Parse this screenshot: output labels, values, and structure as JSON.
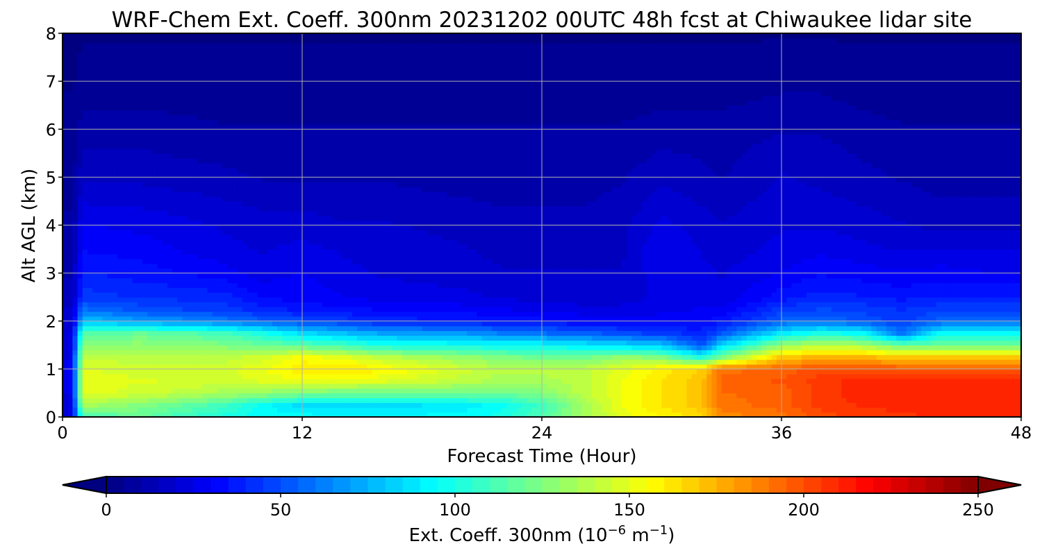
{
  "chart_data": {
    "type": "heatmap",
    "title": "WRF-Chem Ext. Coeff. 300nm  20231202 00UTC 48h fcst at Chiwaukee lidar site",
    "xlabel": "Forecast Time (Hour)",
    "ylabel": "Alt AGL (km)",
    "xlim": [
      0,
      48
    ],
    "ylim": [
      0,
      8
    ],
    "xticks": [
      0,
      12,
      24,
      36,
      48
    ],
    "yticks": [
      0,
      1,
      2,
      3,
      4,
      5,
      6,
      7,
      8
    ],
    "grid": true,
    "x": [
      0,
      0.5,
      1,
      4,
      8,
      10,
      12,
      14,
      16,
      20,
      22,
      24,
      26,
      28,
      30,
      32,
      33,
      36,
      38,
      40,
      42,
      44,
      46,
      48
    ],
    "y": [
      0,
      0.25,
      0.5,
      0.75,
      1.0,
      1.25,
      1.5,
      1.75,
      2.0,
      2.25,
      2.5,
      3.0,
      3.5,
      4.0,
      5.0,
      6.0,
      7.0,
      8.0
    ],
    "z": [
      [
        20,
        25,
        110,
        118,
        100,
        95,
        95,
        92,
        92,
        95,
        100,
        112,
        132,
        150,
        158,
        165,
        185,
        190,
        200,
        205,
        205,
        210,
        212,
        212
      ],
      [
        20,
        25,
        135,
        125,
        110,
        95,
        85,
        85,
        85,
        90,
        95,
        110,
        132,
        152,
        162,
        170,
        190,
        195,
        205,
        208,
        210,
        212,
        212,
        212
      ],
      [
        20,
        30,
        150,
        145,
        135,
        130,
        125,
        120,
        120,
        120,
        120,
        125,
        140,
        152,
        162,
        170,
        192,
        195,
        205,
        210,
        212,
        212,
        212,
        212
      ],
      [
        20,
        30,
        150,
        148,
        145,
        148,
        150,
        150,
        148,
        140,
        135,
        135,
        140,
        152,
        162,
        170,
        195,
        198,
        205,
        210,
        210,
        210,
        210,
        210
      ],
      [
        20,
        30,
        148,
        145,
        145,
        152,
        162,
        165,
        158,
        145,
        138,
        140,
        140,
        150,
        160,
        168,
        190,
        195,
        200,
        200,
        198,
        196,
        196,
        196
      ],
      [
        20,
        30,
        140,
        140,
        140,
        145,
        155,
        150,
        140,
        130,
        125,
        120,
        120,
        130,
        125,
        100,
        125,
        170,
        175,
        175,
        168,
        172,
        172,
        172
      ],
      [
        20,
        25,
        130,
        130,
        125,
        120,
        115,
        110,
        100,
        98,
        95,
        95,
        90,
        85,
        80,
        50,
        85,
        130,
        140,
        135,
        118,
        120,
        120,
        120
      ],
      [
        20,
        25,
        115,
        118,
        110,
        100,
        85,
        78,
        72,
        68,
        62,
        58,
        55,
        50,
        45,
        40,
        52,
        90,
        100,
        95,
        60,
        95,
        95,
        95
      ],
      [
        20,
        20,
        80,
        70,
        62,
        55,
        50,
        45,
        40,
        38,
        36,
        34,
        32,
        30,
        30,
        32,
        35,
        55,
        58,
        52,
        45,
        55,
        55,
        55
      ],
      [
        18,
        18,
        58,
        50,
        45,
        40,
        36,
        34,
        32,
        30,
        28,
        26,
        24,
        24,
        26,
        28,
        28,
        45,
        48,
        46,
        42,
        46,
        46,
        46
      ],
      [
        15,
        15,
        45,
        42,
        40,
        32,
        30,
        28,
        25,
        24,
        22,
        20,
        20,
        20,
        24,
        24,
        24,
        35,
        40,
        38,
        36,
        38,
        38,
        38
      ],
      [
        12,
        12,
        38,
        35,
        30,
        25,
        28,
        24,
        22,
        20,
        18,
        18,
        18,
        18,
        26,
        24,
        22,
        28,
        32,
        30,
        28,
        30,
        28,
        28
      ],
      [
        10,
        10,
        32,
        30,
        24,
        22,
        24,
        22,
        20,
        18,
        16,
        16,
        16,
        16,
        28,
        22,
        20,
        24,
        26,
        24,
        22,
        22,
        22,
        22
      ],
      [
        8,
        8,
        28,
        26,
        22,
        20,
        20,
        18,
        18,
        16,
        14,
        14,
        14,
        16,
        24,
        20,
        18,
        22,
        22,
        20,
        18,
        16,
        16,
        16
      ],
      [
        6,
        6,
        16,
        16,
        14,
        12,
        12,
        12,
        12,
        10,
        10,
        10,
        10,
        12,
        16,
        14,
        12,
        18,
        16,
        14,
        12,
        10,
        10,
        10
      ],
      [
        4,
        4,
        10,
        10,
        8,
        8,
        8,
        8,
        8,
        8,
        8,
        8,
        8,
        8,
        10,
        10,
        10,
        12,
        12,
        10,
        8,
        8,
        8,
        8
      ],
      [
        2,
        2,
        4,
        4,
        4,
        4,
        4,
        4,
        4,
        4,
        4,
        4,
        4,
        4,
        4,
        4,
        4,
        6,
        6,
        4,
        4,
        4,
        4,
        4
      ],
      [
        1,
        1,
        2,
        2,
        2,
        2,
        2,
        2,
        2,
        2,
        2,
        2,
        2,
        2,
        2,
        2,
        2,
        2,
        2,
        2,
        2,
        2,
        2,
        2
      ]
    ],
    "colorbar": {
      "label_main": "Ext. Coeff. 300nm  (10",
      "label_exp1": "−6",
      "label_mid": " m",
      "label_exp2": "−1",
      "label_end": ")",
      "range": [
        0,
        250
      ],
      "ticks": [
        0,
        50,
        100,
        150,
        200,
        250
      ],
      "extend": "both",
      "colormap": "jet"
    }
  }
}
